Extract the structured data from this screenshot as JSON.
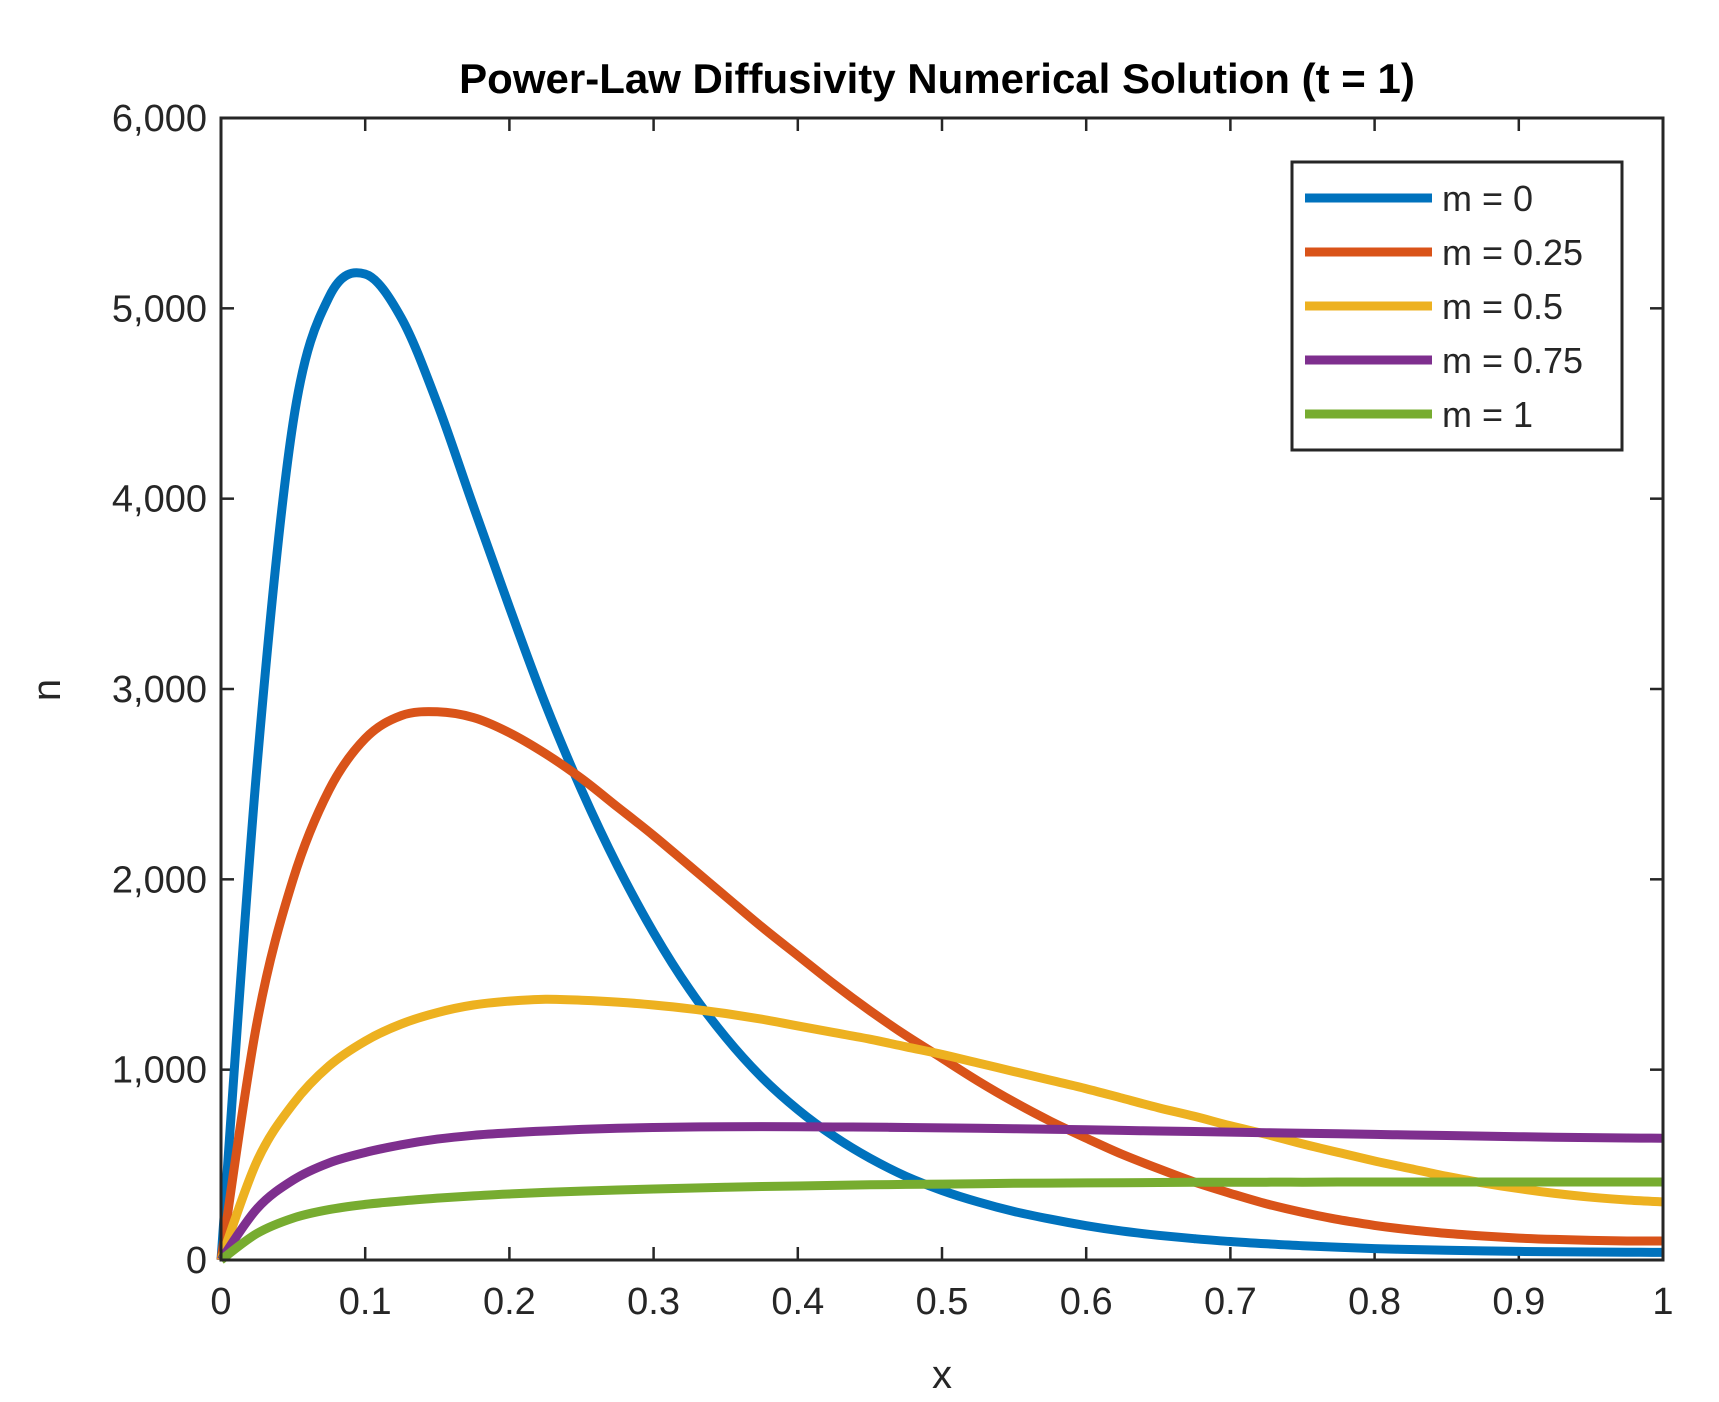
{
  "chart_data": {
    "type": "line",
    "title": "Power-Law Diffusivity Numerical Solution (t = 1)",
    "xlabel": "x",
    "ylabel": "n",
    "xlim": [
      0,
      1
    ],
    "ylim": [
      0,
      6000
    ],
    "xticks": [
      0,
      0.1,
      0.2,
      0.3,
      0.4,
      0.5,
      0.6,
      0.7,
      0.8,
      0.9,
      1
    ],
    "xtick_labels": [
      "0",
      "0.1",
      "0.2",
      "0.3",
      "0.4",
      "0.5",
      "0.6",
      "0.7",
      "0.8",
      "0.9",
      "1"
    ],
    "yticks": [
      0,
      1000,
      2000,
      3000,
      4000,
      5000,
      6000
    ],
    "ytick_labels": [
      "0",
      "1,000",
      "2,000",
      "3,000",
      "4,000",
      "5,000",
      "6,000"
    ],
    "grid": false,
    "legend_position": "top-right",
    "x": [
      0,
      0.025,
      0.05,
      0.075,
      0.1,
      0.125,
      0.15,
      0.175,
      0.2,
      0.225,
      0.25,
      0.275,
      0.3,
      0.325,
      0.35,
      0.375,
      0.4,
      0.425,
      0.45,
      0.475,
      0.5,
      0.525,
      0.55,
      0.575,
      0.6,
      0.625,
      0.65,
      0.675,
      0.7,
      0.725,
      0.75,
      0.775,
      0.8,
      0.825,
      0.85,
      0.875,
      0.9,
      0.925,
      0.95,
      0.975,
      1.0
    ],
    "series": [
      {
        "name": "m = 0",
        "color": "#0072BD",
        "values": [
          0,
          2600,
          4400,
          5060,
          5180,
          4950,
          4500,
          3960,
          3430,
          2920,
          2470,
          2070,
          1720,
          1420,
          1170,
          960,
          790,
          650,
          535,
          440,
          365,
          305,
          255,
          215,
          180,
          152,
          130,
          112,
          97,
          85,
          75,
          67,
          60,
          55,
          51,
          48,
          45,
          43,
          42,
          41,
          40
        ]
      },
      {
        "name": "m = 0.25",
        "color": "#D95319",
        "values": [
          0,
          1250,
          2000,
          2470,
          2740,
          2860,
          2880,
          2850,
          2770,
          2660,
          2530,
          2380,
          2230,
          2070,
          1910,
          1750,
          1600,
          1450,
          1310,
          1180,
          1060,
          940,
          830,
          730,
          640,
          555,
          480,
          410,
          350,
          295,
          250,
          212,
          182,
          158,
          140,
          126,
          115,
          108,
          103,
          100,
          100
        ]
      },
      {
        "name": "m = 0.5",
        "color": "#EDB120",
        "values": [
          0,
          520,
          820,
          1020,
          1150,
          1240,
          1300,
          1340,
          1360,
          1370,
          1365,
          1355,
          1340,
          1320,
          1295,
          1265,
          1230,
          1195,
          1160,
          1120,
          1080,
          1035,
          990,
          945,
          900,
          850,
          800,
          755,
          705,
          660,
          610,
          565,
          520,
          480,
          440,
          405,
          375,
          350,
          330,
          315,
          305
        ]
      },
      {
        "name": "m = 0.75",
        "color": "#7E2F8E",
        "values": [
          0,
          270,
          420,
          510,
          565,
          605,
          635,
          655,
          668,
          678,
          686,
          692,
          696,
          699,
          700,
          701,
          700,
          699,
          698,
          696,
          694,
          692,
          690,
          687,
          684,
          681,
          678,
          675,
          672,
          669,
          666,
          663,
          660,
          657,
          654,
          651,
          648,
          645,
          643,
          641,
          640
        ]
      },
      {
        "name": "m = 1",
        "color": "#77AC30",
        "values": [
          0,
          140,
          220,
          265,
          292,
          310,
          325,
          337,
          347,
          355,
          362,
          368,
          373,
          378,
          382,
          386,
          389,
          392,
          395,
          397,
          399,
          401,
          403,
          404,
          405,
          406,
          407,
          408,
          408,
          409,
          409,
          410,
          410,
          410,
          410,
          410,
          410,
          410,
          410,
          410,
          410
        ]
      }
    ]
  }
}
